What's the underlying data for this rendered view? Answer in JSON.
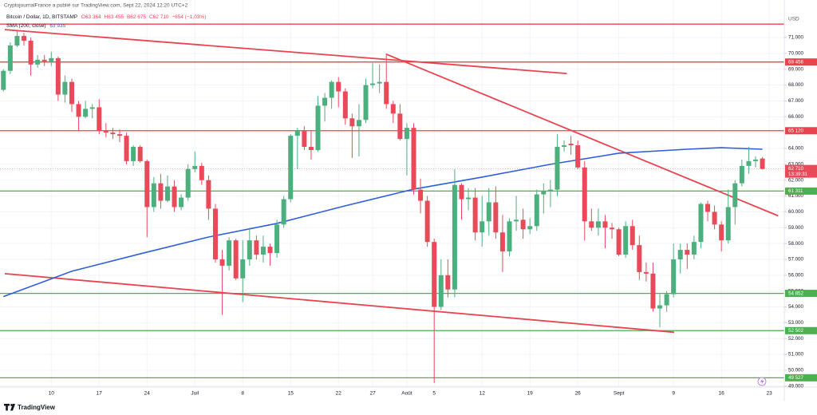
{
  "chart_data": {
    "type": "candlestick",
    "publisher": "CryptojournalFrance a publié sur TradingView.com, Sept 22, 2024 12:20 UTC+2",
    "symbol": "Bitcoin / Dollar, 1D, BITSTAMP",
    "legend_values": [
      "O63 364",
      "H63 455",
      "B62 675",
      "C62 710",
      "−654 (−1,03%)"
    ],
    "y_axis_label": "USD",
    "logo": "TradingView",
    "up_color": "#4caf7d",
    "down_color": "#e84a5a",
    "open": [
      67700,
      68900,
      70500,
      71100,
      70800,
      69300,
      69600,
      69500,
      69700,
      67400,
      68200,
      66800,
      66000,
      66500,
      66600,
      65100,
      65000,
      64900,
      64800,
      63200,
      64100,
      63200,
      60300,
      61800,
      60700,
      61600,
      60300,
      60900,
      62700,
      62900,
      62000,
      60200,
      57000,
      56600,
      58200,
      55800,
      57000,
      58200,
      57300,
      57800,
      57400,
      59200,
      60800,
      64800,
      65100,
      64100,
      63900,
      66700,
      67200,
      68200,
      67600,
      65900,
      65400,
      65800,
      68000,
      68100,
      68200,
      66800,
      66200,
      64600,
      65300,
      61400,
      60700,
      58100,
      54000,
      56000,
      55100,
      61700,
      60800,
      60900,
      58700,
      59400,
      60600,
      58700,
      57500,
      59400,
      59500,
      58900,
      59100,
      61100,
      61300,
      61400,
      64100,
      64300,
      64200,
      62800,
      59400,
      59000,
      59400,
      59000,
      58900,
      57300,
      59100,
      57900,
      56200,
      56100,
      53900,
      54100,
      54800,
      57000,
      57600,
      57300,
      58100,
      60500,
      60000,
      59200,
      58200,
      60300,
      61800,
      62900,
      63200,
      63364
    ],
    "high": [
      69000,
      70700,
      71400,
      71300,
      71000,
      69900,
      69900,
      70100,
      69800,
      68600,
      68400,
      67000,
      67000,
      66800,
      67100,
      65600,
      65300,
      65200,
      65000,
      64200,
      64200,
      63300,
      62200,
      62400,
      62300,
      62000,
      61100,
      63000,
      63800,
      63100,
      62300,
      60500,
      57600,
      58400,
      58300,
      58200,
      59000,
      58500,
      58500,
      58000,
      59500,
      61000,
      64900,
      65300,
      65400,
      65100,
      67300,
      67500,
      68300,
      68500,
      67800,
      66200,
      66800,
      68400,
      69400,
      69300,
      70000,
      67000,
      66800,
      65600,
      65600,
      62100,
      61000,
      58300,
      57000,
      57000,
      62700,
      61800,
      61500,
      61500,
      61000,
      61500,
      61600,
      59800,
      59600,
      61000,
      60200,
      59600,
      61400,
      61800,
      62000,
      64900,
      64500,
      64800,
      64500,
      63200,
      60200,
      60200,
      59800,
      59300,
      59000,
      59400,
      59500,
      58500,
      56800,
      56800,
      54800,
      55000,
      58000,
      58000,
      58000,
      58500,
      60600,
      60700,
      60400,
      59400,
      61400,
      62000,
      63300,
      64100,
      63500,
      63455
    ],
    "low": [
      67600,
      68700,
      70400,
      70500,
      68600,
      69100,
      69200,
      69200,
      67000,
      66900,
      66300,
      65100,
      65900,
      65900,
      64900,
      64700,
      64600,
      64400,
      63000,
      62900,
      63100,
      58400,
      60000,
      60200,
      60600,
      60000,
      60100,
      60700,
      62500,
      61700,
      59500,
      56800,
      53500,
      56300,
      55700,
      54300,
      56600,
      57000,
      56800,
      56600,
      57100,
      59000,
      60600,
      62700,
      63900,
      63300,
      63800,
      65700,
      66500,
      66600,
      65500,
      63400,
      63500,
      65600,
      67800,
      67500,
      66500,
      65600,
      64500,
      62300,
      61100,
      59900,
      57800,
      49200,
      53800,
      54600,
      54600,
      59500,
      60100,
      58200,
      57800,
      58500,
      58300,
      56200,
      57200,
      58800,
      58300,
      58600,
      58800,
      59900,
      60300,
      61000,
      63800,
      63600,
      62700,
      58200,
      58800,
      58500,
      57700,
      58300,
      57200,
      57100,
      57600,
      55700,
      55600,
      53700,
      52700,
      53700,
      54600,
      56100,
      56400,
      57000,
      57700,
      59400,
      58900,
      57500,
      58000,
      59200,
      61600,
      62400,
      62800,
      62675
    ],
    "close": [
      68900,
      70500,
      71100,
      70800,
      69300,
      69600,
      69500,
      69700,
      67400,
      68200,
      66800,
      66000,
      66500,
      66600,
      65100,
      65000,
      64900,
      64800,
      63200,
      64100,
      63200,
      60300,
      61800,
      60700,
      61600,
      60300,
      60900,
      62700,
      62900,
      62000,
      60200,
      57000,
      56600,
      58200,
      55800,
      57000,
      58200,
      57300,
      57800,
      57400,
      59200,
      60800,
      64800,
      65100,
      64100,
      63900,
      66700,
      67200,
      68200,
      67600,
      65900,
      65400,
      65800,
      68000,
      68100,
      68200,
      66800,
      66200,
      64600,
      65300,
      61400,
      60700,
      58100,
      54000,
      56000,
      55100,
      61700,
      60800,
      60900,
      58700,
      59400,
      60600,
      58700,
      57500,
      59400,
      59500,
      58900,
      59100,
      61100,
      61300,
      61400,
      64100,
      64200,
      64200,
      62800,
      59400,
      59000,
      59400,
      59000,
      58900,
      57300,
      59100,
      57900,
      56200,
      56100,
      53900,
      54100,
      54800,
      57000,
      57600,
      57300,
      58100,
      60500,
      60000,
      59200,
      58200,
      60300,
      61800,
      62900,
      63200,
      63300,
      62710
    ],
    "indicator": {
      "name": "SMA (200, close)",
      "value_label": "63 935",
      "color": "#2f5fd8",
      "x": [
        0,
        10,
        20,
        30,
        40,
        50,
        60,
        70,
        80,
        90,
        100,
        105,
        111
      ],
      "values": [
        54650,
        56250,
        57350,
        58410,
        59270,
        60380,
        61430,
        62190,
        63000,
        63700,
        63950,
        64050,
        63950
      ]
    },
    "xlim": [
      -0.5,
      114.2
    ],
    "xticks": [
      {
        "value": 7,
        "label": "10"
      },
      {
        "value": 14,
        "label": "17"
      },
      {
        "value": 21,
        "label": "24"
      },
      {
        "value": 28,
        "label": "Juil"
      },
      {
        "value": 35,
        "label": "8"
      },
      {
        "value": 42,
        "label": "15"
      },
      {
        "value": 49,
        "label": "22"
      },
      {
        "value": 54,
        "label": "27"
      },
      {
        "value": 59,
        "label": "Août"
      },
      {
        "value": 63,
        "label": "5"
      },
      {
        "value": 70,
        "label": "12"
      },
      {
        "value": 77,
        "label": "19"
      },
      {
        "value": 84,
        "label": "26"
      },
      {
        "value": 90,
        "label": "Sept"
      },
      {
        "value": 98,
        "label": "9"
      },
      {
        "value": 105,
        "label": "16"
      },
      {
        "value": 112,
        "label": "23"
      }
    ],
    "ylim": [
      48940,
      73370
    ],
    "yticks": [
      {
        "value": 49000,
        "label": "49.000"
      },
      {
        "value": 50000,
        "label": "50.000"
      },
      {
        "value": 51000,
        "label": "51.000"
      },
      {
        "value": 52000,
        "label": "52.000"
      },
      {
        "value": 53000,
        "label": "53.000"
      },
      {
        "value": 54000,
        "label": "54.000"
      },
      {
        "value": 55000,
        "label": "55.000"
      },
      {
        "value": 56000,
        "label": "56.000"
      },
      {
        "value": 57000,
        "label": "57.000"
      },
      {
        "value": 58000,
        "label": "58.000"
      },
      {
        "value": 59000,
        "label": "59.000"
      },
      {
        "value": 60000,
        "label": "60.000"
      },
      {
        "value": 61000,
        "label": "61.000"
      },
      {
        "value": 62000,
        "label": "62.000"
      },
      {
        "value": 63000,
        "label": "63.000"
      },
      {
        "value": 64000,
        "label": "64.000"
      },
      {
        "value": 65000,
        "label": "65.000"
      },
      {
        "value": 66000,
        "label": "66.000"
      },
      {
        "value": 67000,
        "label": "67.000"
      },
      {
        "value": 68000,
        "label": "68.000"
      },
      {
        "value": 69000,
        "label": "69.000"
      },
      {
        "value": 70000,
        "label": "70.000"
      },
      {
        "value": 71000,
        "label": "71.000"
      }
    ],
    "grid": true,
    "levels": [
      {
        "value": 71850,
        "color": "#e8434f"
      },
      {
        "value": 69456,
        "label": "69 456",
        "color": "#e8434f"
      },
      {
        "value": 65120,
        "label": "65 120",
        "color": "#e8434f"
      },
      {
        "value": 61311,
        "label": "61 311",
        "color": "#4caf50"
      },
      {
        "value": 54852,
        "label": "54 852",
        "color": "#4caf50"
      },
      {
        "value": 52502,
        "label": "52 502",
        "color": "#4caf50"
      },
      {
        "value": 49527,
        "label": "49 527",
        "color": "#4caf50"
      }
    ],
    "trendlines": [
      {
        "x": [
          0.2,
          82.4
        ],
        "values": [
          71500,
          68730
        ],
        "color": "#e8434f"
      },
      {
        "x": [
          56,
          113.3
        ],
        "values": [
          69950,
          59750
        ],
        "color": "#e8434f"
      },
      {
        "x": [
          0.2,
          98.1
        ],
        "values": [
          56100,
          52400
        ],
        "color": "#e8434f"
      }
    ],
    "last_price": {
      "value": 62710,
      "label": "62 710",
      "countdown": "13:39:31",
      "color": "#e84a5a"
    }
  }
}
